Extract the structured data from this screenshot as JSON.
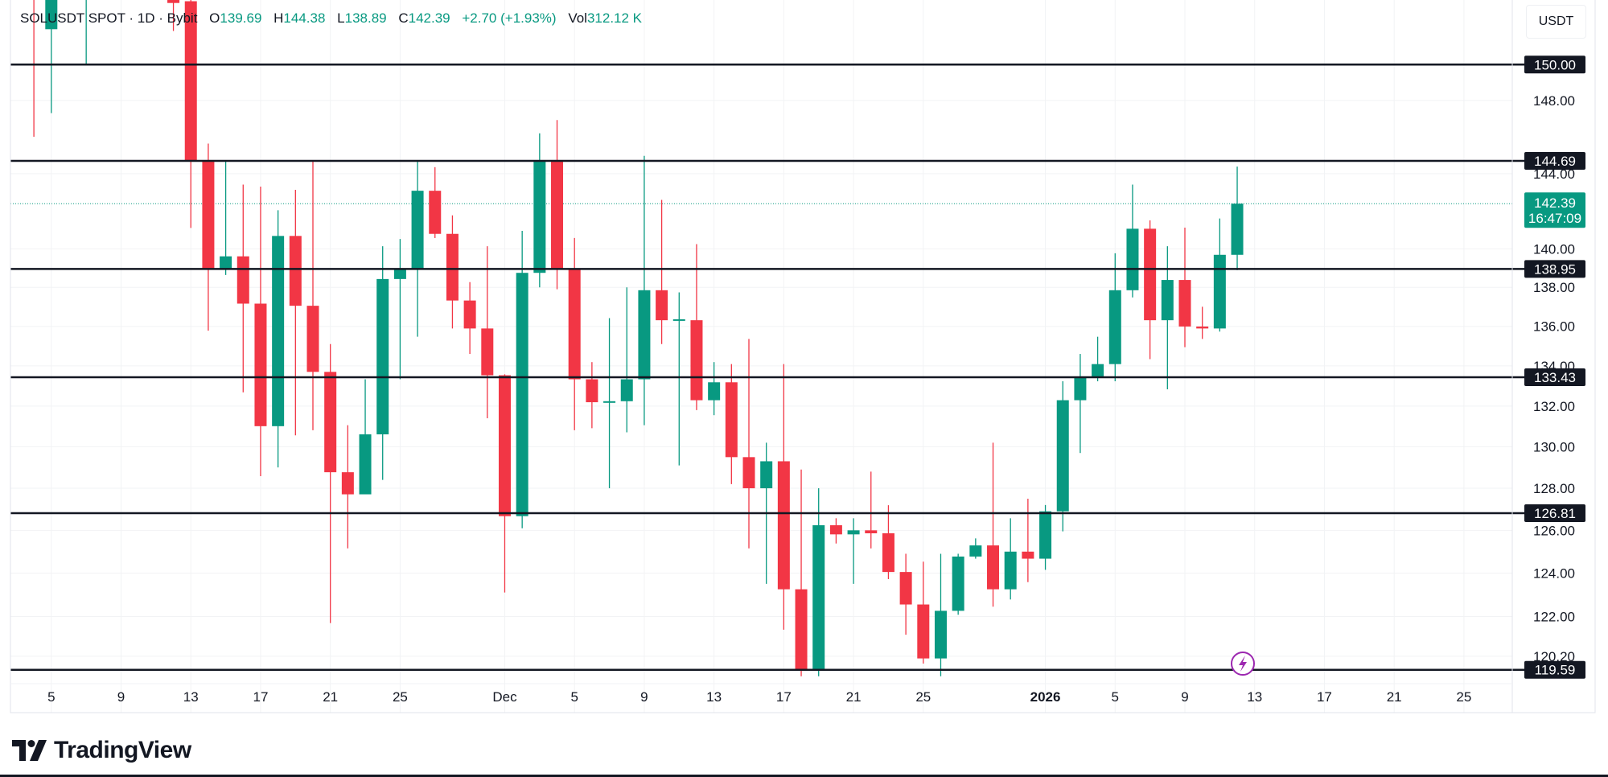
{
  "header": {
    "symbol": "SOLUSDT SPOT · 1D · Bybit",
    "open_label": "O",
    "open": "139.69",
    "high_label": "H",
    "high": "144.38",
    "low_label": "L",
    "low": "138.89",
    "close_label": "C",
    "close": "142.39",
    "change": "+2.70 (+1.93%)",
    "vol_label": "Vol",
    "volume": "312.12 K"
  },
  "currency": "USDT",
  "brand": "TradingView",
  "current_price": {
    "price": "142.39",
    "countdown": "16:47:09"
  },
  "colors": {
    "up": "#089981",
    "down": "#f23645",
    "level_line": "#131722",
    "accent_icon": "#9c27b0"
  },
  "chart_data": {
    "type": "candlestick",
    "title": "",
    "log_scale": true,
    "grid": true,
    "ylim": [
      119.0,
      153.7
    ],
    "y_ticks": [
      "148.00",
      "144.00",
      "140.00",
      "138.00",
      "136.00",
      "134.00",
      "132.00",
      "130.00",
      "128.00",
      "126.00",
      "124.00",
      "122.00",
      "120.20"
    ],
    "x_ticks": [
      {
        "date": "2025-11-05",
        "label": "5"
      },
      {
        "date": "2025-11-09",
        "label": "9"
      },
      {
        "date": "2025-11-13",
        "label": "13"
      },
      {
        "date": "2025-11-17",
        "label": "17"
      },
      {
        "date": "2025-11-21",
        "label": "21"
      },
      {
        "date": "2025-11-25",
        "label": "25"
      },
      {
        "date": "2025-12-01",
        "label": "Dec"
      },
      {
        "date": "2025-12-05",
        "label": "5"
      },
      {
        "date": "2025-12-09",
        "label": "9"
      },
      {
        "date": "2025-12-13",
        "label": "13"
      },
      {
        "date": "2025-12-17",
        "label": "17"
      },
      {
        "date": "2025-12-21",
        "label": "21"
      },
      {
        "date": "2025-12-25",
        "label": "25"
      },
      {
        "date": "2026-01-01",
        "label": "2026",
        "bold": true
      },
      {
        "date": "2026-01-05",
        "label": "5"
      },
      {
        "date": "2026-01-09",
        "label": "9"
      },
      {
        "date": "2026-01-13",
        "label": "13"
      },
      {
        "date": "2026-01-17",
        "label": "17"
      },
      {
        "date": "2026-01-21",
        "label": "21"
      },
      {
        "date": "2026-01-25",
        "label": "25"
      }
    ],
    "horizontal_levels": [
      "150.00",
      "144.69",
      "138.95",
      "133.43",
      "126.81",
      "119.59"
    ],
    "candles": [
      {
        "d": "2025-11-04",
        "o": 158,
        "h": 160,
        "l": 146.0,
        "c": 155
      },
      {
        "d": "2025-11-05",
        "o": 152,
        "h": 158,
        "l": 147.3,
        "c": 156
      },
      {
        "d": "2025-11-07",
        "o": 156,
        "h": 160,
        "l": 150.0,
        "c": 159
      },
      {
        "d": "2025-11-12",
        "o": 153.8,
        "h": 154.2,
        "l": 151.9,
        "c": 153.5
      },
      {
        "d": "2025-11-13",
        "o": 153.6,
        "h": 154,
        "l": 141.1,
        "c": 144.69
      },
      {
        "d": "2025-11-14",
        "o": 144.69,
        "h": 145.63,
        "l": 135.78,
        "c": 138.95
      },
      {
        "d": "2025-11-15",
        "o": 138.95,
        "h": 144.69,
        "l": 138.64,
        "c": 139.61
      },
      {
        "d": "2025-11-16",
        "o": 139.61,
        "h": 143.41,
        "l": 132.68,
        "c": 137.16
      },
      {
        "d": "2025-11-17",
        "o": 137.16,
        "h": 143.3,
        "l": 128.58,
        "c": 131.01
      },
      {
        "d": "2025-11-18",
        "o": 131.01,
        "h": 142.04,
        "l": 129.0,
        "c": 140.68
      },
      {
        "d": "2025-11-19",
        "o": 140.68,
        "h": 143.13,
        "l": 130.56,
        "c": 137.05
      },
      {
        "d": "2025-11-20",
        "o": 137.05,
        "h": 144.69,
        "l": 130.81,
        "c": 133.7
      },
      {
        "d": "2025-11-21",
        "o": 133.7,
        "h": 135.1,
        "l": 121.7,
        "c": 128.77
      },
      {
        "d": "2025-11-22",
        "o": 128.77,
        "h": 131.06,
        "l": 125.15,
        "c": 127.71
      },
      {
        "d": "2025-11-23",
        "o": 127.71,
        "h": 133.33,
        "l": 127.71,
        "c": 130.61
      },
      {
        "d": "2025-11-24",
        "o": 130.61,
        "h": 140.14,
        "l": 128.4,
        "c": 138.43
      },
      {
        "d": "2025-11-25",
        "o": 138.43,
        "h": 140.52,
        "l": 133.33,
        "c": 138.95
      },
      {
        "d": "2025-11-26",
        "o": 138.95,
        "h": 144.69,
        "l": 135.47,
        "c": 143.08
      },
      {
        "d": "2025-11-27",
        "o": 143.08,
        "h": 144.35,
        "l": 140.57,
        "c": 140.79
      },
      {
        "d": "2025-11-28",
        "o": 140.79,
        "h": 141.77,
        "l": 135.89,
        "c": 137.32
      },
      {
        "d": "2025-11-29",
        "o": 137.32,
        "h": 138.27,
        "l": 134.6,
        "c": 135.89
      },
      {
        "d": "2025-11-30",
        "o": 135.89,
        "h": 140.14,
        "l": 131.4,
        "c": 133.53
      },
      {
        "d": "2025-12-01",
        "o": 133.53,
        "h": 133.58,
        "l": 123.1,
        "c": 126.67
      },
      {
        "d": "2025-12-02",
        "o": 126.67,
        "h": 140.95,
        "l": 126.1,
        "c": 138.75
      },
      {
        "d": "2025-12-03",
        "o": 138.75,
        "h": 146.19,
        "l": 138.0,
        "c": 144.69
      },
      {
        "d": "2025-12-04",
        "o": 144.69,
        "h": 146.92,
        "l": 137.9,
        "c": 138.95
      },
      {
        "d": "2025-12-05",
        "o": 138.95,
        "h": 140.57,
        "l": 130.81,
        "c": 133.33
      },
      {
        "d": "2025-12-06",
        "o": 133.33,
        "h": 134.19,
        "l": 130.91,
        "c": 132.19
      },
      {
        "d": "2025-12-07",
        "o": 132.19,
        "h": 136.42,
        "l": 128.0,
        "c": 132.24
      },
      {
        "d": "2025-12-08",
        "o": 132.24,
        "h": 138.0,
        "l": 130.71,
        "c": 133.33
      },
      {
        "d": "2025-12-09",
        "o": 133.33,
        "h": 144.96,
        "l": 131.06,
        "c": 137.85
      },
      {
        "d": "2025-12-10",
        "o": 137.85,
        "h": 142.59,
        "l": 135.1,
        "c": 136.31
      },
      {
        "d": "2025-12-11",
        "o": 136.31,
        "h": 137.74,
        "l": 129.1,
        "c": 136.36
      },
      {
        "d": "2025-12-12",
        "o": 136.31,
        "h": 140.25,
        "l": 131.8,
        "c": 132.29
      },
      {
        "d": "2025-12-13",
        "o": 132.29,
        "h": 134.19,
        "l": 131.55,
        "c": 133.18
      },
      {
        "d": "2025-12-14",
        "o": 133.18,
        "h": 134.09,
        "l": 128.2,
        "c": 129.5
      },
      {
        "d": "2025-12-15",
        "o": 129.5,
        "h": 135.36,
        "l": 125.15,
        "c": 128.0
      },
      {
        "d": "2025-12-16",
        "o": 128.0,
        "h": 130.2,
        "l": 123.5,
        "c": 129.3
      },
      {
        "d": "2025-12-17",
        "o": 129.3,
        "h": 134.09,
        "l": 121.4,
        "c": 123.25
      },
      {
        "d": "2025-12-18",
        "o": 123.25,
        "h": 128.9,
        "l": 119.3,
        "c": 119.6
      },
      {
        "d": "2025-12-19",
        "o": 119.6,
        "h": 128.0,
        "l": 119.3,
        "c": 126.24
      },
      {
        "d": "2025-12-20",
        "o": 126.24,
        "h": 126.57,
        "l": 125.38,
        "c": 125.81
      },
      {
        "d": "2025-12-21",
        "o": 125.81,
        "h": 126.57,
        "l": 123.5,
        "c": 126.0
      },
      {
        "d": "2025-12-22",
        "o": 126.0,
        "h": 128.8,
        "l": 125.15,
        "c": 125.86
      },
      {
        "d": "2025-12-23",
        "o": 125.86,
        "h": 127.19,
        "l": 123.72,
        "c": 124.05
      },
      {
        "d": "2025-12-24",
        "o": 124.05,
        "h": 124.9,
        "l": 121.17,
        "c": 122.55
      },
      {
        "d": "2025-12-25",
        "o": 122.55,
        "h": 124.53,
        "l": 119.87,
        "c": 120.1
      },
      {
        "d": "2025-12-26",
        "o": 120.1,
        "h": 124.9,
        "l": 119.3,
        "c": 122.26
      },
      {
        "d": "2025-12-27",
        "o": 122.26,
        "h": 124.9,
        "l": 122.08,
        "c": 124.77
      },
      {
        "d": "2025-12-28",
        "o": 124.77,
        "h": 125.62,
        "l": 124.67,
        "c": 125.29
      },
      {
        "d": "2025-12-29",
        "o": 125.29,
        "h": 130.2,
        "l": 122.45,
        "c": 123.25
      },
      {
        "d": "2025-12-30",
        "o": 123.25,
        "h": 126.57,
        "l": 122.78,
        "c": 125.0
      },
      {
        "d": "2025-12-31",
        "o": 125.0,
        "h": 127.5,
        "l": 123.58,
        "c": 124.67
      },
      {
        "d": "2026-01-01",
        "o": 124.67,
        "h": 127.2,
        "l": 124.15,
        "c": 126.9
      },
      {
        "d": "2026-01-02",
        "o": 126.9,
        "h": 133.23,
        "l": 125.95,
        "c": 132.29
      },
      {
        "d": "2026-01-03",
        "o": 132.29,
        "h": 134.6,
        "l": 129.7,
        "c": 133.43
      },
      {
        "d": "2026-01-04",
        "o": 133.43,
        "h": 135.47,
        "l": 133.23,
        "c": 134.09
      },
      {
        "d": "2026-01-05",
        "o": 134.09,
        "h": 139.77,
        "l": 133.23,
        "c": 137.85
      },
      {
        "d": "2026-01-06",
        "o": 137.85,
        "h": 143.41,
        "l": 137.48,
        "c": 141.06
      },
      {
        "d": "2026-01-07",
        "o": 141.06,
        "h": 141.5,
        "l": 134.34,
        "c": 136.31
      },
      {
        "d": "2026-01-08",
        "o": 136.31,
        "h": 140.14,
        "l": 132.83,
        "c": 138.38
      },
      {
        "d": "2026-01-09",
        "o": 138.38,
        "h": 141.12,
        "l": 134.94,
        "c": 135.99
      },
      {
        "d": "2026-01-10",
        "o": 135.99,
        "h": 137.0,
        "l": 135.36,
        "c": 135.89
      },
      {
        "d": "2026-01-11",
        "o": 135.89,
        "h": 141.6,
        "l": 135.73,
        "c": 139.69
      },
      {
        "d": "2026-01-12",
        "o": 139.69,
        "h": 144.38,
        "l": 138.89,
        "c": 142.39
      }
    ]
  }
}
